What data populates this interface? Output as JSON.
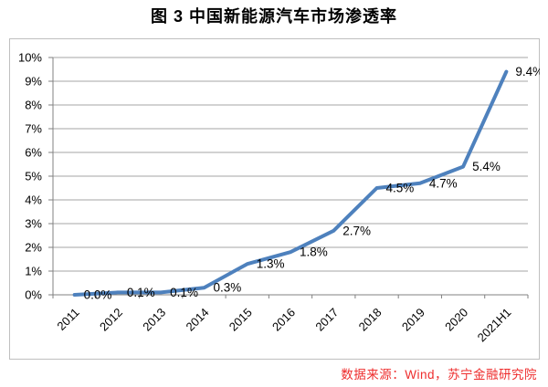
{
  "header": {
    "title": "图 3 中国新能源汽车市场渗透率"
  },
  "footer": {
    "source": "数据来源：Wind，苏宁金融研究院",
    "source_color": "#ee2d2d"
  },
  "chart_data": {
    "type": "line",
    "title": "图 3 中国新能源汽车市场渗透率",
    "categories": [
      "2011",
      "2012",
      "2013",
      "2014",
      "2015",
      "2016",
      "2017",
      "2018",
      "2019",
      "2020",
      "2021H1"
    ],
    "values": [
      0.0,
      0.1,
      0.1,
      0.3,
      1.3,
      1.8,
      2.7,
      4.5,
      4.7,
      5.4,
      9.4
    ],
    "data_labels": [
      "0.0%",
      "0.1%",
      "0.1%",
      "0.3%",
      "1.3%",
      "1.8%",
      "2.7%",
      "4.5%",
      "4.7%",
      "5.4%",
      "9.4%"
    ],
    "y_ticks": [
      "0%",
      "1%",
      "2%",
      "3%",
      "4%",
      "5%",
      "6%",
      "7%",
      "8%",
      "9%",
      "10%"
    ],
    "ylim": [
      0,
      10
    ],
    "xlabel": "",
    "ylabel": "",
    "grid": true,
    "legend": "none",
    "line_color": "#4e81bd",
    "line_width": 4,
    "gridline_color": "#a6a6a6",
    "axis_color": "#808080",
    "border_color": "#bfbfbf",
    "label_color": "#000000"
  }
}
